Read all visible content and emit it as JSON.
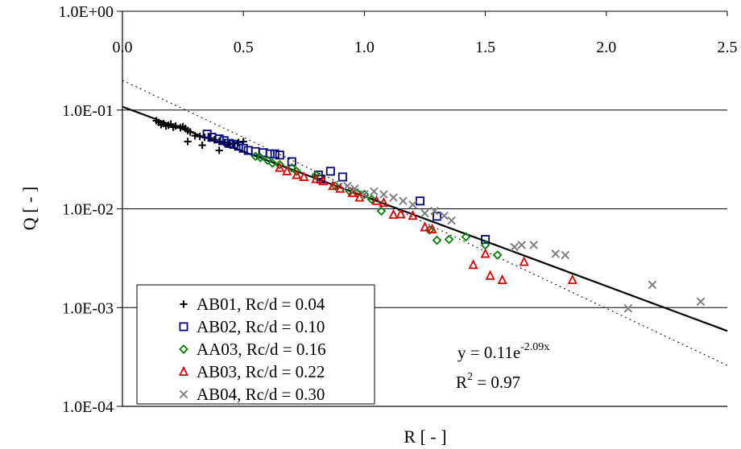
{
  "chart_data": {
    "type": "scatter",
    "title": "",
    "xlabel": "R [ - ]",
    "ylabel": "Q [ - ]",
    "xlim": [
      0,
      2.5
    ],
    "ylim": [
      0.0001,
      1
    ],
    "yscale": "log",
    "x_ticks": [
      0,
      0.5,
      1.0,
      1.5,
      2.0,
      2.5
    ],
    "x_tick_labels": [
      "0.0",
      "0.5",
      "1.0",
      "1.5",
      "2.0",
      "2.5"
    ],
    "y_ticks": [
      1,
      0.1,
      0.01,
      0.001,
      0.0001
    ],
    "y_tick_labels": [
      "1.0E+00",
      "1.0E-01",
      "1.0E-02",
      "1.0E-03",
      "1.0E-04"
    ],
    "grid": "horizontal major",
    "legend_position": "bottom-left",
    "annotations": {
      "equation_base": "y = 0.11e",
      "equation_exponent": "-2.09x",
      "r2_base": "R",
      "r2_sup": "2",
      "r2_value": " = 0.97"
    },
    "fit_lines": [
      {
        "style": "solid",
        "color": "#000000",
        "x": [
          0,
          2.5
        ],
        "y": [
          0.108,
          0.00058
        ]
      },
      {
        "style": "dotted",
        "color": "#000000",
        "x": [
          0,
          2.5
        ],
        "y": [
          0.2,
          0.00026
        ]
      }
    ],
    "series": [
      {
        "name": "AB01, Rc/d = 0.04",
        "marker": "plus",
        "color": "#000000",
        "x": [
          0.14,
          0.15,
          0.16,
          0.17,
          0.18,
          0.19,
          0.2,
          0.21,
          0.22,
          0.24,
          0.25,
          0.26,
          0.27,
          0.28,
          0.3,
          0.32,
          0.34,
          0.36,
          0.38,
          0.4,
          0.42,
          0.44,
          0.46,
          0.48,
          0.5,
          0.27,
          0.33,
          0.4
        ],
        "y": [
          0.078,
          0.075,
          0.071,
          0.073,
          0.069,
          0.07,
          0.072,
          0.067,
          0.069,
          0.066,
          0.068,
          0.065,
          0.062,
          0.06,
          0.055,
          0.054,
          0.053,
          0.052,
          0.05,
          0.048,
          0.047,
          0.045,
          0.046,
          0.047,
          0.048,
          0.048,
          0.044,
          0.039
        ]
      },
      {
        "name": "AB02, Rc/d = 0.10",
        "marker": "square",
        "color": "#000080",
        "x": [
          0.35,
          0.37,
          0.4,
          0.42,
          0.44,
          0.46,
          0.48,
          0.5,
          0.52,
          0.55,
          0.58,
          0.61,
          0.63,
          0.65,
          0.7,
          0.81,
          0.82,
          0.86,
          0.91,
          1.23,
          1.3,
          1.5
        ],
        "y": [
          0.057,
          0.053,
          0.051,
          0.049,
          0.046,
          0.045,
          0.043,
          0.041,
          0.039,
          0.038,
          0.037,
          0.036,
          0.036,
          0.035,
          0.03,
          0.022,
          0.02,
          0.024,
          0.021,
          0.012,
          0.0084,
          0.0049
        ]
      },
      {
        "name": "AA03, Rc/d = 0.16",
        "marker": "diamond",
        "color": "#008000",
        "x": [
          0.55,
          0.57,
          0.6,
          0.62,
          0.65,
          0.7,
          0.72,
          0.8,
          0.88,
          0.94,
          0.97,
          1.0,
          1.03,
          1.07,
          1.27,
          1.3,
          1.35,
          1.42,
          1.5,
          1.55
        ],
        "y": [
          0.034,
          0.033,
          0.031,
          0.029,
          0.028,
          0.026,
          0.024,
          0.022,
          0.017,
          0.015,
          0.0145,
          0.014,
          0.0125,
          0.0095,
          0.0061,
          0.0048,
          0.0049,
          0.0052,
          0.0043,
          0.0034
        ]
      },
      {
        "name": "AB03, Rc/d = 0.22",
        "marker": "triangle",
        "color": "#e00000",
        "x": [
          0.65,
          0.68,
          0.72,
          0.75,
          0.8,
          0.83,
          0.87,
          0.9,
          0.95,
          0.98,
          1.05,
          1.08,
          1.12,
          1.15,
          1.2,
          1.25,
          1.28,
          1.45,
          1.5,
          1.52,
          1.57,
          1.66,
          1.86
        ],
        "y": [
          0.026,
          0.024,
          0.022,
          0.021,
          0.02,
          0.019,
          0.017,
          0.016,
          0.0145,
          0.013,
          0.012,
          0.0115,
          0.0087,
          0.0088,
          0.0085,
          0.0065,
          0.0062,
          0.0027,
          0.0035,
          0.0021,
          0.0019,
          0.0029,
          0.0019
        ]
      },
      {
        "name": "AB04, Rc/d = 0.30",
        "marker": "cross",
        "color": "#808080",
        "x": [
          0.93,
          0.96,
          1.0,
          1.04,
          1.08,
          1.12,
          1.16,
          1.2,
          1.25,
          1.29,
          1.33,
          1.36,
          1.62,
          1.65,
          1.7,
          1.79,
          1.83,
          2.09,
          2.19,
          2.39
        ],
        "y": [
          0.017,
          0.016,
          0.014,
          0.015,
          0.014,
          0.013,
          0.012,
          0.011,
          0.009,
          0.0095,
          0.0085,
          0.0076,
          0.0041,
          0.0043,
          0.0043,
          0.0035,
          0.0034,
          0.00098,
          0.0017,
          0.00115
        ]
      }
    ]
  }
}
